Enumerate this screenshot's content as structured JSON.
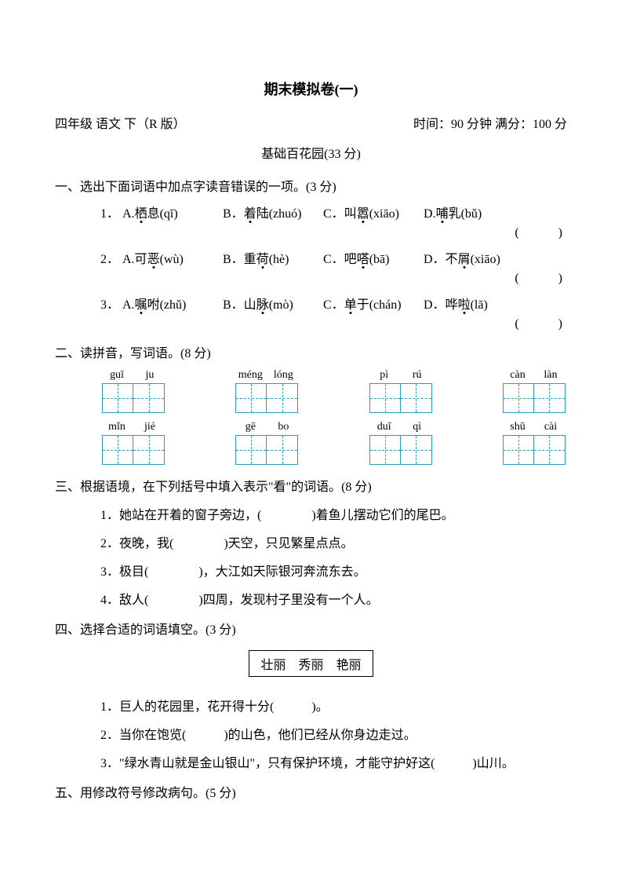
{
  "title": "期末模拟卷(一)",
  "header": {
    "left": "四年级 语文 下（R 版）",
    "right": "时间：90 分钟 满分：100 分"
  },
  "section_title": "基础百花园(33 分)",
  "q1": {
    "heading": "一、选出下面词语中加点字读音错误的一项。(3 分)",
    "items": [
      {
        "num": "1．",
        "a_pre": "A.",
        "a_char": "栖",
        "a_post": "息(qī)",
        "b_pre": "B．",
        "b_char": "着",
        "b_post": "陆(zhuó)",
        "c_pre": "C．叫",
        "c_char": "嚣",
        "c_post": "(xiāo)",
        "d_pre": "D.",
        "d_char": "哺",
        "d_post": "乳(bǔ)",
        "paren": "(　　)"
      },
      {
        "num": "2．",
        "a_pre": "A.可",
        "a_char": "恶",
        "a_post": "(wù)",
        "b_pre": "B．重",
        "b_char": "荷",
        "b_post": "(hè)",
        "c_pre": "C．吧",
        "c_char": "嗒",
        "c_post": "(bā)",
        "d_pre": "D．不",
        "d_char": "屑",
        "d_post": "(xiāo)",
        "paren": "(　　)"
      },
      {
        "num": "3．",
        "a_pre": "A.",
        "a_char": "嘱",
        "a_post": "咐(zhǔ)",
        "b_pre": "B．山",
        "b_char": "脉",
        "b_post": "(mò)",
        "c_pre": "C．",
        "c_char": "单",
        "c_post": "于(chán)",
        "d_pre": "D．哗",
        "d_char": "啦",
        "d_post": "(lā)",
        "paren": "(　　)"
      }
    ]
  },
  "q2": {
    "heading": "二、读拼音，写词语。(8 分)",
    "rows": [
      [
        [
          "guī",
          "ju"
        ],
        [
          "méng",
          "lóng"
        ],
        [
          "pì",
          "rú"
        ],
        [
          "càn",
          "làn"
        ]
      ],
      [
        [
          "mǐn",
          "jié"
        ],
        [
          "gē",
          "bo"
        ],
        [
          "duī",
          "qì"
        ],
        [
          "shū",
          "cài"
        ]
      ]
    ]
  },
  "q3": {
    "heading": "三、根据语境，在下列括号中填入表示\"看\"的词语。(8 分)",
    "items": [
      {
        "num": "1．",
        "text_a": "她站在开着的窗子旁边，(　　　　)着鱼儿摆动它们的尾巴。"
      },
      {
        "num": "2．",
        "text_a": "夜晚，我(　　　　)天空，只见繁星点点。"
      },
      {
        "num": "3．",
        "text_a": "极目(　　　　)，大江如天际银河奔流东去。"
      },
      {
        "num": "4．",
        "text_a": "敌人(　　　　)四周，发现村子里没有一个人。"
      }
    ]
  },
  "q4": {
    "heading": "四、选择合适的词语填空。(3 分)",
    "words": "壮丽　秀丽　艳丽",
    "items": [
      {
        "num": "1．",
        "text": "巨人的花园里，花开得十分(　　　)。"
      },
      {
        "num": "2．",
        "text": "当你在饱览(　　　)的山色，他们已经从你身边走过。"
      },
      {
        "num": "3．",
        "text": "\"绿水青山就是金山银山\"，只有保护环境，才能守护好这(　　　)山川。"
      }
    ]
  },
  "q5": {
    "heading": "五、用修改符号修改病句。(5 分)"
  }
}
